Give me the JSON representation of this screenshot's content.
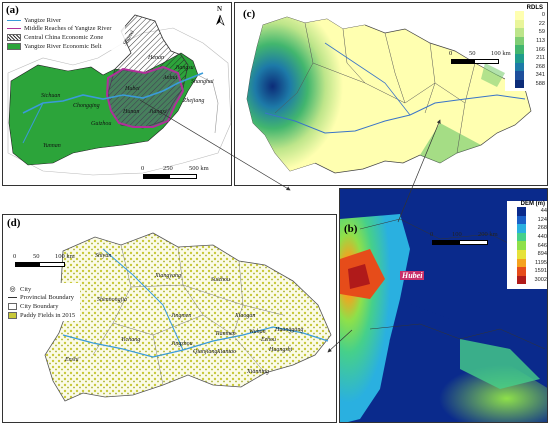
{
  "panel_a": {
    "label": "(a)",
    "north": "N",
    "legend": [
      {
        "text": "Yangtze River",
        "kind": "line",
        "color": "#3a9bd9"
      },
      {
        "text": "Middle Reaches of Yangtze River",
        "kind": "line",
        "color": "#b0309a"
      },
      {
        "text": "Central China Economic Zone",
        "kind": "hatch",
        "color": "#333333"
      },
      {
        "text": "Yangtze River Economic Belt",
        "kind": "fill",
        "color": "#2ca43a"
      }
    ],
    "places": {
      "sichuan": "Sichuan",
      "chongqing": "Chongqing",
      "guizhou": "Guizhou",
      "yunnan": "Yunnan",
      "hubei": "Hubei",
      "hunan": "Hunan",
      "jiangxi": "Jiangxi",
      "anhui": "Anhui",
      "henan": "Henan",
      "shanxi": "Shanxi",
      "jiangsu": "Jiangsu",
      "zhejiang": "Zhejiang",
      "shanghai": "Shanghai"
    },
    "scale": {
      "t0": "0",
      "t1": "250",
      "t2": "500 km"
    }
  },
  "panel_c": {
    "label": "(c)",
    "legend_title": "RDLS",
    "classes": [
      "0",
      "22",
      "59",
      "113",
      "166",
      "211",
      "268",
      "341",
      "588"
    ],
    "colors": [
      "#ffffb0",
      "#e9f59a",
      "#bde58a",
      "#7fce74",
      "#42b66e",
      "#1f9c8c",
      "#1d7aa8",
      "#1e4f9c",
      "#0c2c78"
    ],
    "scale": {
      "t0": "0",
      "t1": "50",
      "t2": "100 km"
    }
  },
  "panel_b": {
    "label": "(b)",
    "legend_title": "DEM (m)",
    "classes": [
      "44",
      "124",
      "268",
      "440",
      "646",
      "894",
      "1195",
      "1591",
      "3002"
    ],
    "colors": [
      "#0a2a8c",
      "#1b60c8",
      "#2ab0e0",
      "#46d08a",
      "#8ee04a",
      "#e6e23a",
      "#f5a21e",
      "#e64c1a",
      "#b01a1a"
    ],
    "scale": {
      "t0": "0",
      "t1": "100",
      "t2": "200 km"
    },
    "province_label": "Hubei"
  },
  "panel_d": {
    "label": "(d)",
    "legend": [
      {
        "text": "City",
        "kind": "dot"
      },
      {
        "text": "Provincial Boundary",
        "kind": "line"
      },
      {
        "text": "City Boundary",
        "kind": "box"
      },
      {
        "text": "Paddy Fields in 2015",
        "kind": "fill",
        "color": "#c9c93a"
      }
    ],
    "scale": {
      "t0": "0",
      "t1": "50",
      "t2": "100 km"
    },
    "cities": {
      "shiyan": "Shiyan",
      "xiangyang": "Xiangyang",
      "suizhou": "Suizhou",
      "shennongjia": "Shennongjia",
      "jingmen": "Jingmen",
      "xiaogan": "Xiaogan",
      "yichang": "Yichang",
      "tianmen": "Tianmen",
      "wuhan": "Wuhan",
      "huanggang": "Huanggang",
      "jingzhou": "Jingzhou",
      "qianjiang": "Qianjiang",
      "xiantao": "Xiantao",
      "ezhou": "Ezhou",
      "huangshi": "Huangshi",
      "xianning": "Xianning",
      "enshi": "Enshi"
    }
  }
}
